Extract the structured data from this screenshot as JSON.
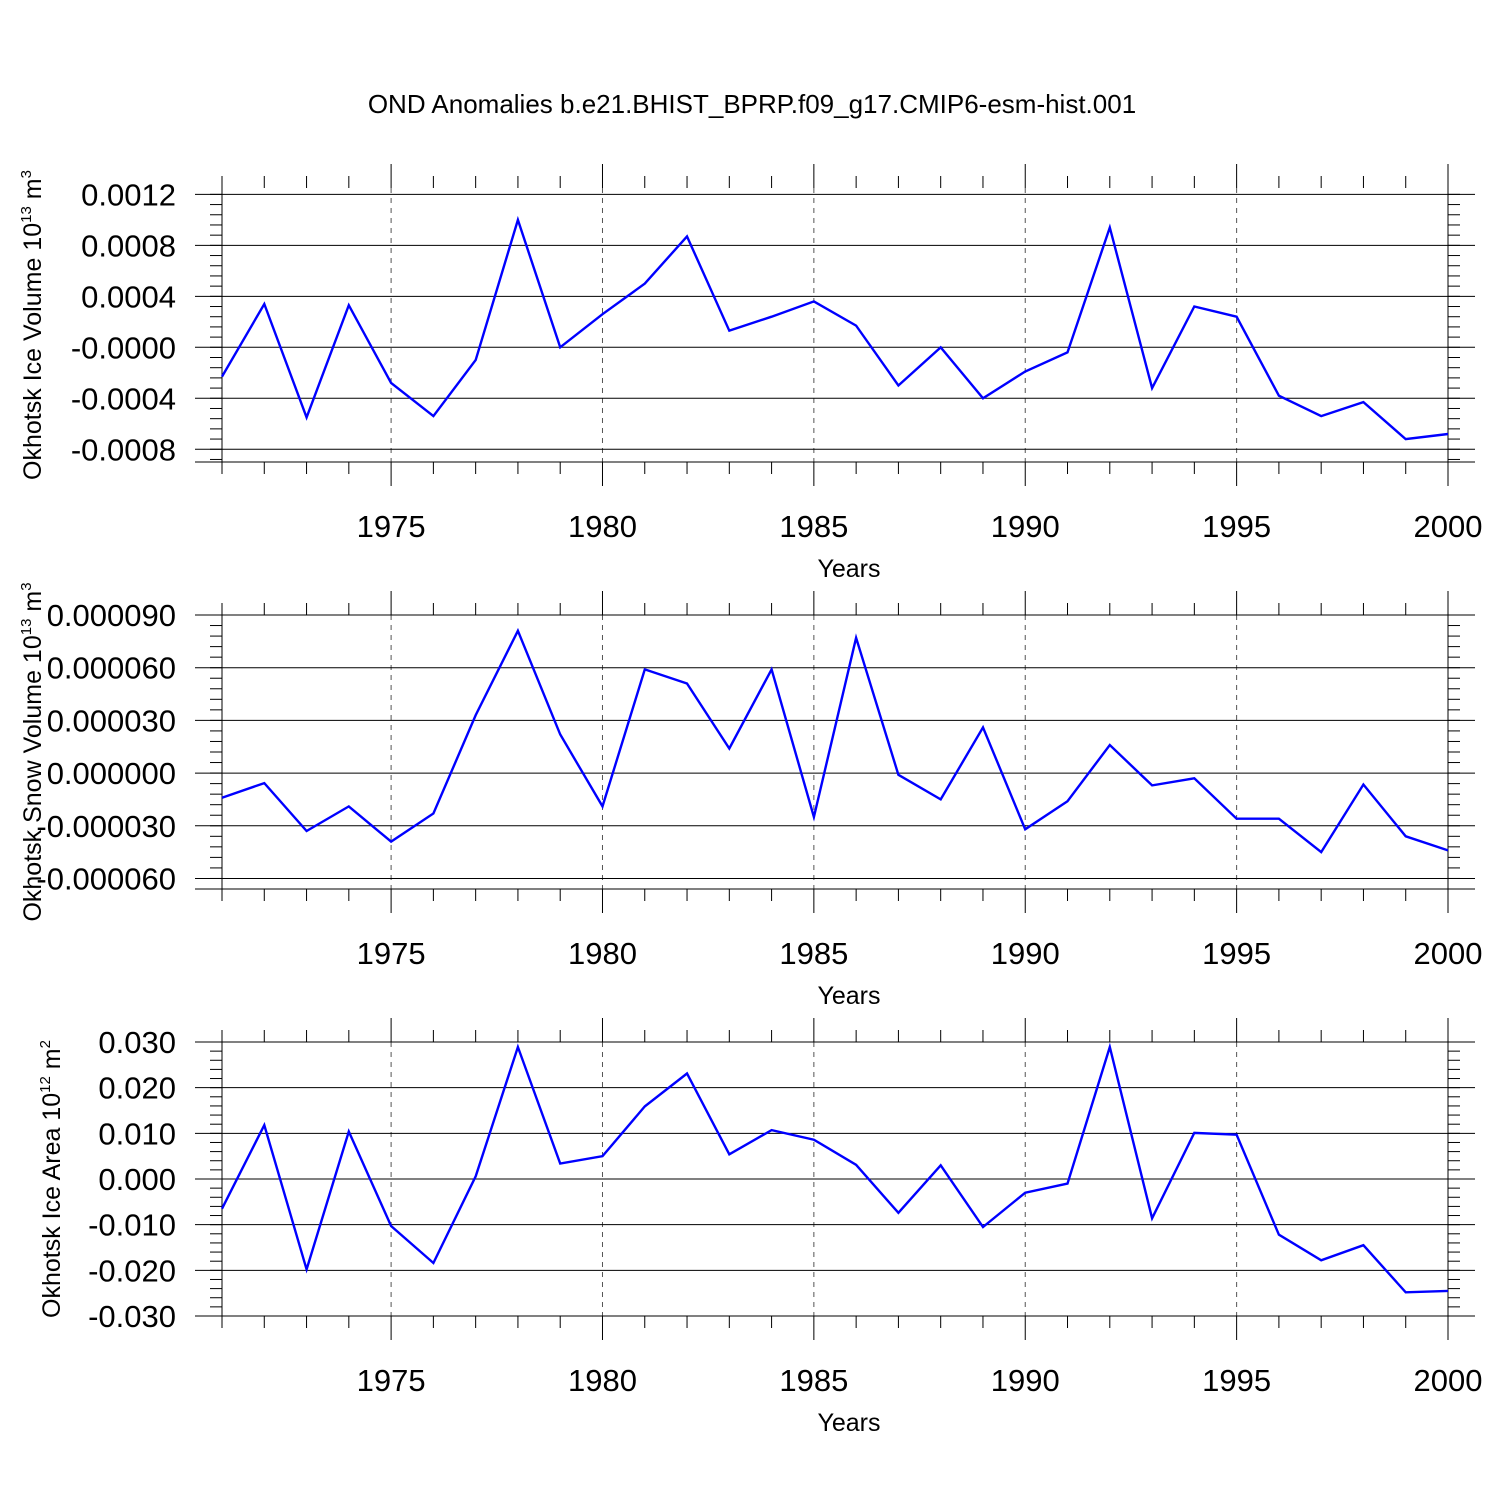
{
  "title": "OND Anomalies b.e21.BHIST_BPRP.f09_g17.CMIP6-esm-hist.001",
  "line_color": "#0000ff",
  "chart_data": [
    {
      "type": "line",
      "title": "OND Anomalies b.e21.BHIST_BPRP.f09_g17.CMIP6-esm-hist.001",
      "xlabel": "Years",
      "ylabel_main": "Okhotsk Ice Volume 10",
      "ylabel_exp": "13",
      "ylabel_unit": " m",
      "ylabel_unit_exp": "3",
      "xlim": [
        1971,
        2000
      ],
      "ylim": [
        -0.0009,
        0.00125
      ],
      "yticks": [
        0.0012,
        0.0008,
        0.0004,
        0.0,
        -0.0004,
        -0.0008
      ],
      "ytick_labels": [
        "0.0012",
        "0.0008",
        "0.0004",
        "-0.0000",
        "-0.0004",
        "-0.0008"
      ],
      "xticks": [
        1975,
        1980,
        1985,
        1990,
        1995,
        2000
      ],
      "xtick_labels": [
        "1975",
        "1980",
        "1985",
        "1990",
        "1995",
        "2000"
      ],
      "x": [
        1971,
        1972,
        1973,
        1974,
        1975,
        1976,
        1977,
        1978,
        1979,
        1980,
        1981,
        1982,
        1983,
        1984,
        1985,
        1986,
        1987,
        1988,
        1989,
        1990,
        1991,
        1992,
        1993,
        1994,
        1995,
        1996,
        1997,
        1998,
        1999,
        2000
      ],
      "values": [
        -0.00023,
        0.00034,
        -0.00055,
        0.00033,
        -0.00028,
        -0.00054,
        -0.0001,
        0.001,
        0.0,
        0.00026,
        0.0005,
        0.00087,
        0.00013,
        0.00024,
        0.00036,
        0.00017,
        -0.0003,
        0.0,
        -0.0004,
        -0.00019,
        -4e-05,
        0.00094,
        -0.00032,
        0.00032,
        0.00024,
        -0.00038,
        -0.00054,
        -0.00043,
        -0.00072,
        -0.00068
      ]
    },
    {
      "type": "line",
      "xlabel": "Years",
      "ylabel_main": "Okhotsk Snow Volume 10",
      "ylabel_exp": "13",
      "ylabel_unit": " m",
      "ylabel_unit_exp": "3",
      "xlim": [
        1971,
        2000
      ],
      "ylim": [
        -6.6e-05,
        9e-05
      ],
      "yticks": [
        9e-05,
        6e-05,
        3e-05,
        0.0,
        -3e-05,
        -6e-05
      ],
      "ytick_labels": [
        "0.000090",
        "0.000060",
        "0.000030",
        "0.000000",
        "-0.000030",
        "-0.000060"
      ],
      "xticks": [
        1975,
        1980,
        1985,
        1990,
        1995,
        2000
      ],
      "xtick_labels": [
        "1975",
        "1980",
        "1985",
        "1990",
        "1995",
        "2000"
      ],
      "x": [
        1971,
        1972,
        1973,
        1974,
        1975,
        1976,
        1977,
        1978,
        1979,
        1980,
        1981,
        1982,
        1983,
        1984,
        1985,
        1986,
        1987,
        1988,
        1989,
        1990,
        1991,
        1992,
        1993,
        1994,
        1995,
        1996,
        1997,
        1998,
        1999,
        2000
      ],
      "values": [
        -1.4e-05,
        -5.7e-06,
        -3.3e-05,
        -1.9e-05,
        -3.9e-05,
        -2.3e-05,
        3.3e-05,
        8.1e-05,
        2.2e-05,
        -1.9e-05,
        5.9e-05,
        5.1e-05,
        1.4e-05,
        5.9e-05,
        -2.5e-05,
        7.7e-05,
        -1e-06,
        -1.5e-05,
        2.6e-05,
        -3.2e-05,
        -1.6e-05,
        1.6e-05,
        -7e-06,
        -3e-06,
        -2.6e-05,
        -2.6e-05,
        -4.5e-05,
        -6.5e-06,
        -3.6e-05,
        -4.4e-05
      ]
    },
    {
      "type": "line",
      "xlabel": "Years",
      "ylabel_main": "Okhotsk Ice Area 10",
      "ylabel_exp": "12",
      "ylabel_unit": " m",
      "ylabel_unit_exp": "2",
      "xlim": [
        1971,
        2000
      ],
      "ylim": [
        -0.03,
        0.03
      ],
      "yticks": [
        0.03,
        0.02,
        0.01,
        0.0,
        -0.01,
        -0.02,
        -0.03
      ],
      "ytick_labels": [
        "0.030",
        "0.020",
        "0.010",
        "0.000",
        "-0.010",
        "-0.020",
        "-0.030"
      ],
      "xticks": [
        1975,
        1980,
        1985,
        1990,
        1995,
        2000
      ],
      "xtick_labels": [
        "1975",
        "1980",
        "1985",
        "1990",
        "1995",
        "2000"
      ],
      "x": [
        1971,
        1972,
        1973,
        1974,
        1975,
        1976,
        1977,
        1978,
        1979,
        1980,
        1981,
        1982,
        1983,
        1984,
        1985,
        1986,
        1987,
        1988,
        1989,
        1990,
        1991,
        1992,
        1993,
        1994,
        1995,
        1996,
        1997,
        1998,
        1999,
        2000
      ],
      "values": [
        -0.0065,
        0.0118,
        -0.0198,
        0.0104,
        -0.0103,
        -0.0184,
        0.0006,
        0.0289,
        0.0034,
        0.005,
        0.0159,
        0.0231,
        0.0054,
        0.0107,
        0.0086,
        0.0031,
        -0.0074,
        0.003,
        -0.0105,
        -0.003,
        -0.001,
        0.0289,
        -0.0086,
        0.0101,
        0.0097,
        -0.0122,
        -0.0178,
        -0.0145,
        -0.0248,
        -0.0245
      ]
    }
  ]
}
